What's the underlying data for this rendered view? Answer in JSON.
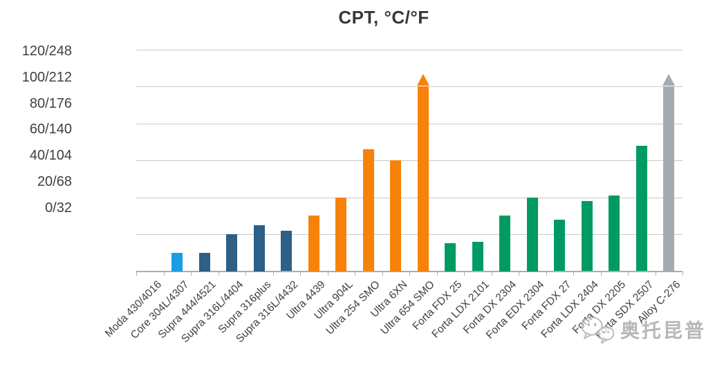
{
  "title": "CPT, °C/°F",
  "watermark": {
    "icon": "wechat-logo",
    "text": "奥托昆普"
  },
  "colors": {
    "title_text": "#383838",
    "axis_label_text": "#3f3f3f",
    "gridline": "#c6c9cb",
    "axis_line": "#a9adb0",
    "watermark_gray": "#ababab"
  },
  "chart_data": {
    "type": "bar",
    "title": "CPT, °C/°F",
    "grid": true,
    "legend": false,
    "y_axis": {
      "unit": "°C/°F",
      "min_c": 0,
      "max_c": 120,
      "step_c": 20,
      "tick_labels": [
        "120/248",
        "100/212",
        "80/176",
        "60/140",
        "40/104",
        "20/68",
        "0/32"
      ]
    },
    "series_colors": {
      "core": "#1b9de2",
      "supra": "#2d5f87",
      "ultra": "#f78209",
      "forta": "#009b62",
      "alloy": "#a5abaf"
    },
    "bars": [
      {
        "label": "Moda 430/4016",
        "series": "moda",
        "value_c": 0
      },
      {
        "label": "Core 304L/4307",
        "series": "core",
        "value_c": 10
      },
      {
        "label": "Supra 444/4521",
        "series": "supra",
        "value_c": 10
      },
      {
        "label": "Supra 316L/4404",
        "series": "supra",
        "value_c": 20
      },
      {
        "label": "Supra 316plus",
        "series": "supra",
        "value_c": 25
      },
      {
        "label": "Supra 316L/4432",
        "series": "supra",
        "value_c": 22
      },
      {
        "label": "Ultra 4439",
        "series": "ultra",
        "value_c": 30
      },
      {
        "label": "Ultra 904L",
        "series": "ultra",
        "value_c": 40
      },
      {
        "label": "Ultra 254 SMO",
        "series": "ultra",
        "value_c": 66
      },
      {
        "label": "Ultra 6XN",
        "series": "ultra",
        "value_c": 60
      },
      {
        "label": "Ultra 654 SMO",
        "series": "ultra",
        "value_c": 100,
        "exceeds_scale": true
      },
      {
        "label": "Forta FDX 25",
        "series": "forta",
        "value_c": 15
      },
      {
        "label": "Forta LDX 2101",
        "series": "forta",
        "value_c": 16
      },
      {
        "label": "Forta DX 2304",
        "series": "forta",
        "value_c": 30
      },
      {
        "label": "Forta EDX 2304",
        "series": "forta",
        "value_c": 40
      },
      {
        "label": "Forta FDX 27",
        "series": "forta",
        "value_c": 28
      },
      {
        "label": "Forta LDX 2404",
        "series": "forta",
        "value_c": 38
      },
      {
        "label": "Forta DX 2205",
        "series": "forta",
        "value_c": 41
      },
      {
        "label": "Forta SDX 2507",
        "series": "forta",
        "value_c": 68
      },
      {
        "label": "Alloy C-276",
        "series": "alloy",
        "value_c": 100,
        "exceeds_scale": true
      }
    ]
  }
}
